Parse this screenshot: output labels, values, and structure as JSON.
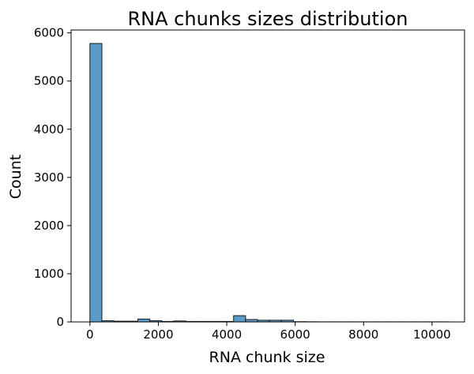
{
  "chart_data": {
    "type": "bar",
    "title": "RNA chunks sizes distribution",
    "xlabel": "RNA chunk size",
    "ylabel": "Count",
    "xlim": [
      -550,
      10950
    ],
    "ylim": [
      0,
      6060
    ],
    "xticks": [
      0,
      2000,
      4000,
      6000,
      8000,
      10000
    ],
    "yticks": [
      0,
      1000,
      2000,
      3000,
      4000,
      5000,
      6000
    ],
    "bin_width": 350,
    "bins_start": [
      0,
      350,
      700,
      1050,
      1400,
      1750,
      2100,
      2450,
      2800,
      3150,
      3500,
      3850,
      4200,
      4550,
      4900,
      5250,
      5600,
      5950,
      6300,
      6650,
      7000,
      7350,
      7700,
      8050,
      8400,
      8750,
      9100,
      9450,
      9800,
      10150
    ],
    "values": [
      5780,
      25,
      15,
      15,
      60,
      25,
      10,
      20,
      10,
      10,
      10,
      10,
      130,
      50,
      35,
      35,
      35,
      5,
      3,
      2,
      2,
      2,
      2,
      2,
      2,
      2,
      2,
      2,
      2,
      2
    ],
    "bar_color": "#5b9bc8",
    "edge_color": "#1a1a1a",
    "grid": false,
    "legend": "none"
  }
}
